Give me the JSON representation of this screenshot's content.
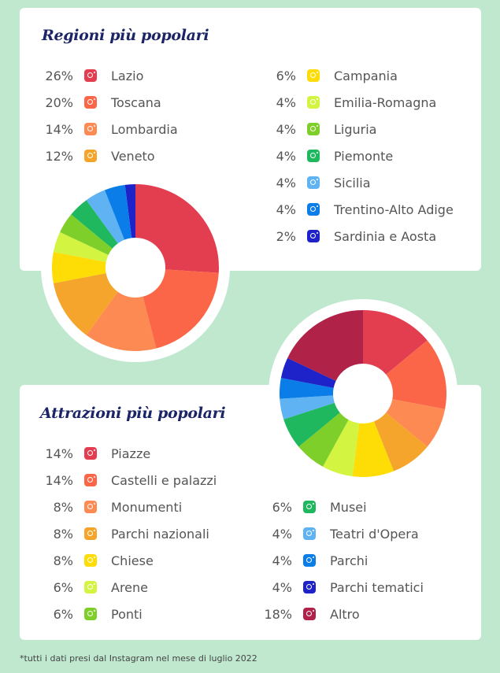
{
  "chart_data": [
    {
      "type": "pie",
      "title": "Regioni più popolari",
      "categories": [
        "Lazio",
        "Toscana",
        "Lombardia",
        "Veneto",
        "Campania",
        "Emilia-Romagna",
        "Liguria",
        "Piemonte",
        "Sicilia",
        "Trentino-Alto Adige",
        "Sardinia e Aosta"
      ],
      "values": [
        26,
        20,
        14,
        12,
        6,
        4,
        4,
        4,
        4,
        4,
        2
      ],
      "labels": [
        "26%",
        "20%",
        "14%",
        "12%",
        "6%",
        "4%",
        "4%",
        "4%",
        "4%",
        "4%",
        "2%"
      ],
      "colors": [
        "#e23e50",
        "#fb6648",
        "#fd8a52",
        "#f5a52b",
        "#fedc05",
        "#d3f441",
        "#7fcf2a",
        "#1fb85f",
        "#5fb3f3",
        "#0a7de8",
        "#1e22c9"
      ],
      "icon": "instagram-icon",
      "donut": true
    },
    {
      "type": "pie",
      "title": "Attrazioni più popolari",
      "categories": [
        "Piazze",
        "Castelli e palazzi",
        "Monumenti",
        "Parchi nazionali",
        "Chiese",
        "Arene",
        "Ponti",
        "Musei",
        "Teatri d'Opera",
        "Parchi",
        "Parchi tematici",
        "Altro"
      ],
      "values": [
        14,
        14,
        8,
        8,
        8,
        6,
        6,
        6,
        4,
        4,
        4,
        18
      ],
      "labels": [
        "14%",
        "14%",
        "8%",
        "8%",
        "8%",
        "6%",
        "6%",
        "6%",
        "4%",
        "4%",
        "4%",
        "18%"
      ],
      "colors": [
        "#e23e50",
        "#fb6648",
        "#fd8a52",
        "#f5a52b",
        "#fedc05",
        "#d3f441",
        "#7fcf2a",
        "#1fb85f",
        "#5fb3f3",
        "#0a7de8",
        "#1e22c9",
        "#b02248"
      ],
      "icon": "instagram-icon",
      "donut": true
    }
  ],
  "footnote": "*tutti i dati presi dal Instagram nel mese di luglio 2022"
}
